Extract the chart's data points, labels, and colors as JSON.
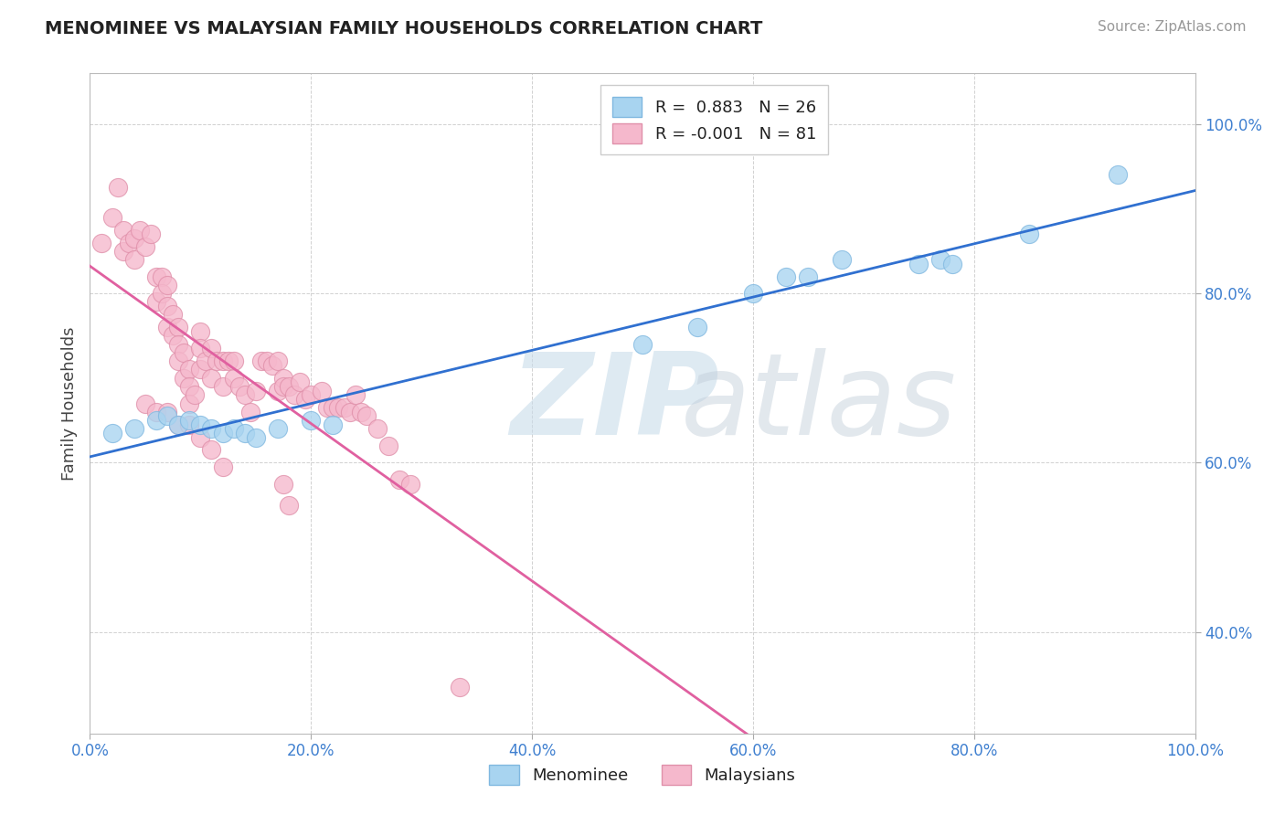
{
  "title": "MENOMINEE VS MALAYSIAN FAMILY HOUSEHOLDS CORRELATION CHART",
  "source": "Source: ZipAtlas.com",
  "ylabel": "Family Households",
  "xlim": [
    0.0,
    1.0
  ],
  "ylim": [
    0.28,
    1.06
  ],
  "xtick_positions": [
    0.0,
    0.2,
    0.4,
    0.6,
    0.8,
    1.0
  ],
  "xtick_labels": [
    "0.0%",
    "20.0%",
    "40.0%",
    "60.0%",
    "80.0%",
    "100.0%"
  ],
  "ytick_positions": [
    0.4,
    0.6,
    0.8,
    1.0
  ],
  "ytick_labels": [
    "40.0%",
    "60.0%",
    "80.0%",
    "100.0%"
  ],
  "legend_r_menominee": "0.883",
  "legend_n_menominee": "26",
  "legend_r_malaysian": "-0.001",
  "legend_n_malaysian": "81",
  "menominee_color": "#a8d4f0",
  "malaysian_color": "#f5b8cc",
  "menominee_edge": "#80b8e0",
  "malaysian_edge": "#e090aa",
  "trendline_menominee": "#3070d0",
  "trendline_malaysian": "#e060a0",
  "tick_color": "#4080d0",
  "background_color": "#ffffff",
  "grid_color": "#cccccc",
  "menominee_x": [
    0.02,
    0.04,
    0.06,
    0.07,
    0.08,
    0.09,
    0.1,
    0.11,
    0.12,
    0.13,
    0.14,
    0.15,
    0.17,
    0.2,
    0.22,
    0.5,
    0.55,
    0.6,
    0.63,
    0.65,
    0.68,
    0.75,
    0.77,
    0.78,
    0.85,
    0.93
  ],
  "menominee_y": [
    0.635,
    0.64,
    0.65,
    0.655,
    0.645,
    0.65,
    0.645,
    0.64,
    0.635,
    0.64,
    0.635,
    0.63,
    0.64,
    0.65,
    0.645,
    0.74,
    0.76,
    0.8,
    0.82,
    0.82,
    0.84,
    0.835,
    0.84,
    0.835,
    0.87,
    0.94
  ],
  "malaysian_x": [
    0.01,
    0.02,
    0.025,
    0.03,
    0.03,
    0.035,
    0.04,
    0.04,
    0.045,
    0.05,
    0.055,
    0.06,
    0.06,
    0.065,
    0.065,
    0.07,
    0.07,
    0.07,
    0.075,
    0.075,
    0.08,
    0.08,
    0.08,
    0.085,
    0.085,
    0.09,
    0.09,
    0.09,
    0.095,
    0.1,
    0.1,
    0.1,
    0.105,
    0.11,
    0.11,
    0.115,
    0.12,
    0.12,
    0.125,
    0.13,
    0.13,
    0.135,
    0.14,
    0.145,
    0.15,
    0.155,
    0.16,
    0.165,
    0.17,
    0.17,
    0.175,
    0.175,
    0.18,
    0.185,
    0.19,
    0.195,
    0.2,
    0.21,
    0.215,
    0.22,
    0.225,
    0.23,
    0.235,
    0.24,
    0.245,
    0.25,
    0.26,
    0.27,
    0.28,
    0.29,
    0.05,
    0.06,
    0.07,
    0.08,
    0.09,
    0.1,
    0.11,
    0.12,
    0.175,
    0.18,
    0.335
  ],
  "malaysian_y": [
    0.86,
    0.89,
    0.925,
    0.85,
    0.875,
    0.86,
    0.865,
    0.84,
    0.875,
    0.855,
    0.87,
    0.82,
    0.79,
    0.82,
    0.8,
    0.81,
    0.785,
    0.76,
    0.775,
    0.75,
    0.76,
    0.74,
    0.72,
    0.73,
    0.7,
    0.71,
    0.69,
    0.67,
    0.68,
    0.755,
    0.735,
    0.71,
    0.72,
    0.735,
    0.7,
    0.72,
    0.72,
    0.69,
    0.72,
    0.72,
    0.7,
    0.69,
    0.68,
    0.66,
    0.685,
    0.72,
    0.72,
    0.715,
    0.72,
    0.685,
    0.7,
    0.69,
    0.69,
    0.68,
    0.695,
    0.675,
    0.68,
    0.685,
    0.665,
    0.665,
    0.665,
    0.665,
    0.66,
    0.68,
    0.66,
    0.655,
    0.64,
    0.62,
    0.58,
    0.575,
    0.67,
    0.66,
    0.66,
    0.645,
    0.645,
    0.63,
    0.615,
    0.595,
    0.575,
    0.55,
    0.335
  ]
}
